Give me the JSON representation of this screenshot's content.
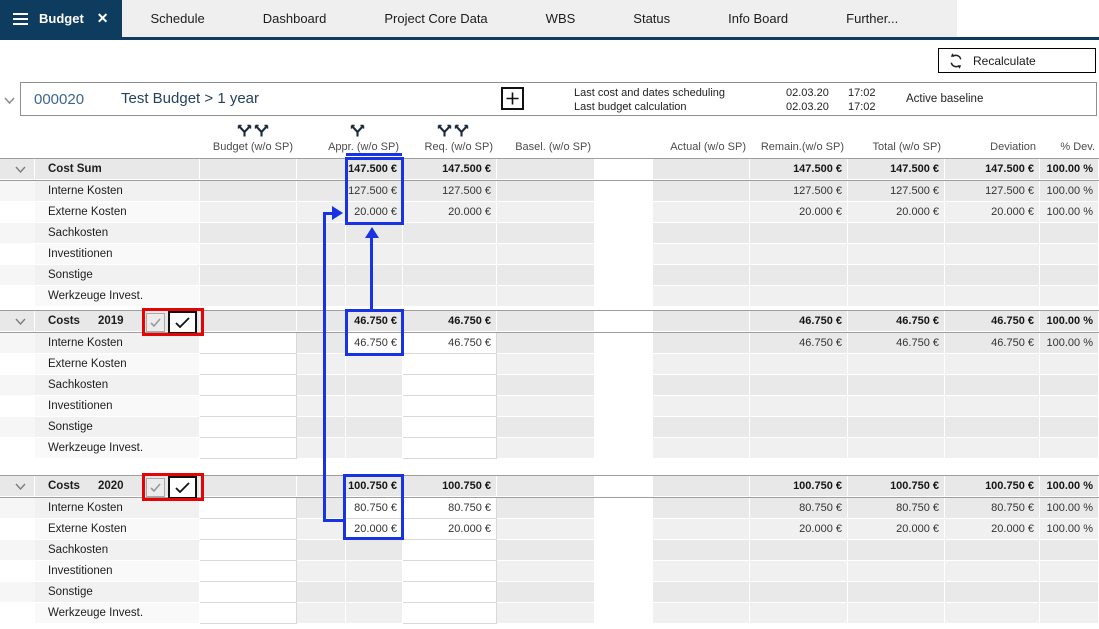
{
  "tabs": {
    "active": "Budget",
    "items": [
      "Schedule",
      "Dashboard",
      "Project Core Data",
      "WBS",
      "Status",
      "Info Board",
      "Further..."
    ]
  },
  "toolbar": {
    "recalculate": "Recalculate"
  },
  "project": {
    "number": "000020",
    "title": "Test Budget > 1 year",
    "info": [
      {
        "label": "Last cost and dates scheduling",
        "date": "02.03.20",
        "time": "17:02"
      },
      {
        "label": "Last budget calculation",
        "date": "02.03.20",
        "time": "17:02"
      }
    ],
    "baseline": "Active baseline"
  },
  "table": {
    "columns": [
      {
        "key": "budget",
        "label": "Budget (w/o SP)",
        "icons": 2
      },
      {
        "key": "appr",
        "label": "Appr. (w/o SP)",
        "icons": 1
      },
      {
        "key": "req",
        "label": "Req. (w/o SP)",
        "icons": 2
      },
      {
        "key": "basel",
        "label": "Basel. (w/o SP)",
        "icons": 0
      },
      {
        "key": "actual",
        "label": "Actual (w/o SP)",
        "icons": 0
      },
      {
        "key": "remain",
        "label": "Remain.(w/o SP)",
        "icons": 0
      },
      {
        "key": "total",
        "label": "Total (w/o SP)",
        "icons": 0
      },
      {
        "key": "deviation",
        "label": "Deviation",
        "icons": 0
      },
      {
        "key": "pdev",
        "label": "% Dev.",
        "icons": 0
      }
    ],
    "groups": [
      {
        "label": "Cost Sum",
        "year": "",
        "editable": false,
        "checkboxes": false,
        "totals": {
          "appr": "147.500 €",
          "req": "147.500 €",
          "remain": "147.500 €",
          "total": "147.500 €",
          "deviation": "147.500 €",
          "pdev": "100.00 %"
        },
        "rows": [
          {
            "label": "Interne Kosten",
            "values": {
              "appr": "127.500 €",
              "req": "127.500 €",
              "remain": "127.500 €",
              "total": "127.500 €",
              "deviation": "127.500 €",
              "pdev": "100.00 %"
            }
          },
          {
            "label": "Externe Kosten",
            "values": {
              "appr": "20.000 €",
              "req": "20.000 €",
              "remain": "20.000 €",
              "total": "20.000 €",
              "deviation": "20.000 €",
              "pdev": "100.00 %"
            }
          },
          {
            "label": "Sachkosten",
            "values": {}
          },
          {
            "label": "Investitionen",
            "values": {}
          },
          {
            "label": "Sonstige",
            "values": {}
          },
          {
            "label": "Werkzeuge Invest.",
            "values": {}
          }
        ]
      },
      {
        "label": "Costs",
        "year": "2019",
        "editable": true,
        "checkboxes": true,
        "totals": {
          "appr": "46.750 €",
          "req": "46.750 €",
          "remain": "46.750 €",
          "total": "46.750 €",
          "deviation": "46.750 €",
          "pdev": "100.00 %"
        },
        "rows": [
          {
            "label": "Interne Kosten",
            "values": {
              "appr": "46.750 €",
              "req": "46.750 €",
              "remain": "46.750 €",
              "total": "46.750 €",
              "deviation": "46.750 €",
              "pdev": "100.00 %"
            }
          },
          {
            "label": "Externe Kosten",
            "values": {}
          },
          {
            "label": "Sachkosten",
            "values": {}
          },
          {
            "label": "Investitionen",
            "values": {}
          },
          {
            "label": "Sonstige",
            "values": {}
          },
          {
            "label": "Werkzeuge Invest.",
            "values": {}
          }
        ]
      },
      {
        "label": "Costs",
        "year": "2020",
        "editable": true,
        "checkboxes": true,
        "totals": {
          "appr": "100.750 €",
          "req": "100.750 €",
          "remain": "100.750 €",
          "total": "100.750 €",
          "deviation": "100.750 €",
          "pdev": "100.00 %"
        },
        "rows": [
          {
            "label": "Interne Kosten",
            "values": {
              "appr": "80.750 €",
              "req": "80.750 €",
              "remain": "80.750 €",
              "total": "80.750 €",
              "deviation": "80.750 €",
              "pdev": "100.00 %"
            }
          },
          {
            "label": "Externe Kosten",
            "values": {
              "appr": "20.000 €",
              "req": "20.000 €",
              "remain": "20.000 €",
              "total": "20.000 €",
              "deviation": "20.000 €",
              "pdev": "100.00 %"
            }
          },
          {
            "label": "Sachkosten",
            "values": {}
          },
          {
            "label": "Investitionen",
            "values": {}
          },
          {
            "label": "Sonstige",
            "values": {}
          },
          {
            "label": "Werkzeuge Invest.",
            "values": {}
          }
        ]
      }
    ]
  },
  "colors": {
    "navy": "#0e3c5f",
    "annotation_blue": "#1733e3",
    "annotation_red": "#e60505"
  }
}
